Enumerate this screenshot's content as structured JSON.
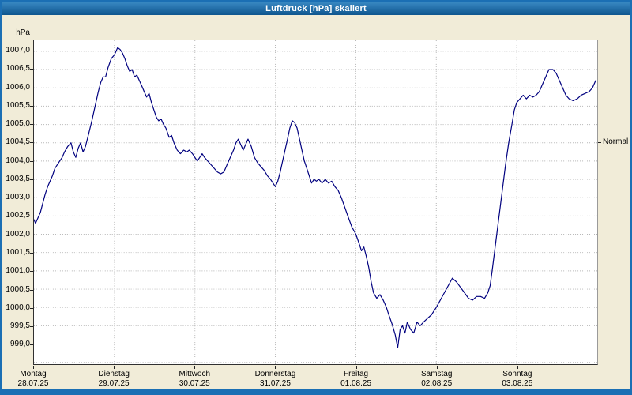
{
  "window": {
    "title": "Luftdruck [hPa] skaliert"
  },
  "colors": {
    "background": "#f1ecd8",
    "frame": "#1b6fb4",
    "titlebar_top": "#3a8ac4",
    "titlebar_bottom": "#0f568f",
    "line": "#00007f",
    "grid": "#b5b5b5",
    "plot_background": "#ffffff"
  },
  "chart_data": {
    "type": "line",
    "title": "Luftdruck [hPa] skaliert",
    "series_name": "Luftdruck",
    "ylabel": "hPa",
    "xlabel": "",
    "grid": true,
    "legend": "none",
    "xlim": [
      0,
      7
    ],
    "ylim": [
      998.45,
      1007.3
    ],
    "y_ticks": [
      {
        "value": 1007.0,
        "label": "1007,0"
      },
      {
        "value": 1006.5,
        "label": "1006,5"
      },
      {
        "value": 1006.0,
        "label": "1006,0"
      },
      {
        "value": 1005.5,
        "label": "1005,5"
      },
      {
        "value": 1005.0,
        "label": "1005,0"
      },
      {
        "value": 1004.5,
        "label": "1004,5"
      },
      {
        "value": 1004.0,
        "label": "1004,0"
      },
      {
        "value": 1003.5,
        "label": "1003,5"
      },
      {
        "value": 1003.0,
        "label": "1003,0"
      },
      {
        "value": 1002.5,
        "label": "1002,5"
      },
      {
        "value": 1002.0,
        "label": "1002,0"
      },
      {
        "value": 1001.5,
        "label": "1001,5"
      },
      {
        "value": 1001.0,
        "label": "1001,0"
      },
      {
        "value": 1000.5,
        "label": "1000,5"
      },
      {
        "value": 1000.0,
        "label": "1000,0"
      },
      {
        "value": 999.5,
        "label": "999,5"
      },
      {
        "value": 999.0,
        "label": "999,0"
      },
      {
        "value": 998.5,
        "label": ""
      }
    ],
    "x_labels": [
      {
        "day": "Montag",
        "date": "28.07.25"
      },
      {
        "day": "Dienstag",
        "date": "29.07.25"
      },
      {
        "day": "Mittwoch",
        "date": "30.07.25"
      },
      {
        "day": "Donnerstag",
        "date": "31.07.25"
      },
      {
        "day": "Freitag",
        "date": "01.08.25"
      },
      {
        "day": "Samstag",
        "date": "02.08.25"
      },
      {
        "day": "Sonntag",
        "date": "03.08.25"
      }
    ],
    "normal": {
      "label": "Normal",
      "value": 1004.5
    },
    "points": [
      [
        0.0,
        1002.4
      ],
      [
        0.02,
        1002.3
      ],
      [
        0.05,
        1002.45
      ],
      [
        0.08,
        1002.6
      ],
      [
        0.11,
        1002.85
      ],
      [
        0.14,
        1003.1
      ],
      [
        0.17,
        1003.3
      ],
      [
        0.2,
        1003.45
      ],
      [
        0.23,
        1003.6
      ],
      [
        0.26,
        1003.8
      ],
      [
        0.29,
        1003.9
      ],
      [
        0.32,
        1004.0
      ],
      [
        0.35,
        1004.1
      ],
      [
        0.38,
        1004.25
      ],
      [
        0.42,
        1004.4
      ],
      [
        0.46,
        1004.5
      ],
      [
        0.49,
        1004.25
      ],
      [
        0.52,
        1004.1
      ],
      [
        0.55,
        1004.35
      ],
      [
        0.58,
        1004.5
      ],
      [
        0.61,
        1004.25
      ],
      [
        0.64,
        1004.4
      ],
      [
        0.68,
        1004.75
      ],
      [
        0.72,
        1005.1
      ],
      [
        0.76,
        1005.5
      ],
      [
        0.8,
        1005.9
      ],
      [
        0.83,
        1006.15
      ],
      [
        0.86,
        1006.3
      ],
      [
        0.89,
        1006.3
      ],
      [
        0.92,
        1006.55
      ],
      [
        0.96,
        1006.8
      ],
      [
        1.0,
        1006.9
      ],
      [
        1.02,
        1007.0
      ],
      [
        1.04,
        1007.1
      ],
      [
        1.07,
        1007.05
      ],
      [
        1.1,
        1006.95
      ],
      [
        1.13,
        1006.8
      ],
      [
        1.16,
        1006.6
      ],
      [
        1.19,
        1006.45
      ],
      [
        1.22,
        1006.5
      ],
      [
        1.25,
        1006.3
      ],
      [
        1.28,
        1006.35
      ],
      [
        1.31,
        1006.2
      ],
      [
        1.34,
        1006.05
      ],
      [
        1.37,
        1005.9
      ],
      [
        1.4,
        1005.75
      ],
      [
        1.43,
        1005.85
      ],
      [
        1.46,
        1005.6
      ],
      [
        1.49,
        1005.4
      ],
      [
        1.52,
        1005.2
      ],
      [
        1.55,
        1005.1
      ],
      [
        1.58,
        1005.15
      ],
      [
        1.61,
        1005.0
      ],
      [
        1.64,
        1004.9
      ],
      [
        1.68,
        1004.65
      ],
      [
        1.71,
        1004.7
      ],
      [
        1.74,
        1004.5
      ],
      [
        1.78,
        1004.3
      ],
      [
        1.82,
        1004.2
      ],
      [
        1.86,
        1004.3
      ],
      [
        1.9,
        1004.25
      ],
      [
        1.93,
        1004.3
      ],
      [
        1.97,
        1004.2
      ],
      [
        2.0,
        1004.1
      ],
      [
        2.03,
        1004.0
      ],
      [
        2.06,
        1004.1
      ],
      [
        2.09,
        1004.2
      ],
      [
        2.12,
        1004.1
      ],
      [
        2.16,
        1004.0
      ],
      [
        2.2,
        1003.9
      ],
      [
        2.24,
        1003.8
      ],
      [
        2.28,
        1003.7
      ],
      [
        2.32,
        1003.65
      ],
      [
        2.36,
        1003.7
      ],
      [
        2.4,
        1003.9
      ],
      [
        2.44,
        1004.1
      ],
      [
        2.48,
        1004.3
      ],
      [
        2.51,
        1004.5
      ],
      [
        2.54,
        1004.6
      ],
      [
        2.57,
        1004.45
      ],
      [
        2.6,
        1004.3
      ],
      [
        2.63,
        1004.45
      ],
      [
        2.66,
        1004.6
      ],
      [
        2.7,
        1004.4
      ],
      [
        2.74,
        1004.1
      ],
      [
        2.78,
        1003.95
      ],
      [
        2.82,
        1003.85
      ],
      [
        2.86,
        1003.75
      ],
      [
        2.9,
        1003.6
      ],
      [
        2.94,
        1003.5
      ],
      [
        2.97,
        1003.4
      ],
      [
        3.0,
        1003.3
      ],
      [
        3.03,
        1003.45
      ],
      [
        3.06,
        1003.7
      ],
      [
        3.09,
        1004.0
      ],
      [
        3.12,
        1004.3
      ],
      [
        3.15,
        1004.6
      ],
      [
        3.18,
        1004.9
      ],
      [
        3.21,
        1005.1
      ],
      [
        3.24,
        1005.05
      ],
      [
        3.27,
        1004.9
      ],
      [
        3.3,
        1004.6
      ],
      [
        3.33,
        1004.3
      ],
      [
        3.36,
        1004.0
      ],
      [
        3.39,
        1003.8
      ],
      [
        3.42,
        1003.6
      ],
      [
        3.45,
        1003.4
      ],
      [
        3.48,
        1003.5
      ],
      [
        3.51,
        1003.45
      ],
      [
        3.54,
        1003.5
      ],
      [
        3.58,
        1003.4
      ],
      [
        3.62,
        1003.5
      ],
      [
        3.66,
        1003.4
      ],
      [
        3.7,
        1003.45
      ],
      [
        3.74,
        1003.3
      ],
      [
        3.78,
        1003.2
      ],
      [
        3.82,
        1003.0
      ],
      [
        3.86,
        1002.75
      ],
      [
        3.9,
        1002.5
      ],
      [
        3.95,
        1002.2
      ],
      [
        4.0,
        1002.0
      ],
      [
        4.04,
        1001.75
      ],
      [
        4.07,
        1001.55
      ],
      [
        4.1,
        1001.65
      ],
      [
        4.13,
        1001.4
      ],
      [
        4.16,
        1001.1
      ],
      [
        4.19,
        1000.7
      ],
      [
        4.22,
        1000.4
      ],
      [
        4.26,
        1000.25
      ],
      [
        4.3,
        1000.35
      ],
      [
        4.34,
        1000.2
      ],
      [
        4.38,
        1000.0
      ],
      [
        4.41,
        999.8
      ],
      [
        4.45,
        999.55
      ],
      [
        4.49,
        999.25
      ],
      [
        4.52,
        998.9
      ],
      [
        4.55,
        999.4
      ],
      [
        4.58,
        999.5
      ],
      [
        4.61,
        999.3
      ],
      [
        4.64,
        999.6
      ],
      [
        4.68,
        999.4
      ],
      [
        4.72,
        999.3
      ],
      [
        4.76,
        999.6
      ],
      [
        4.8,
        999.5
      ],
      [
        4.84,
        999.6
      ],
      [
        4.89,
        999.7
      ],
      [
        4.94,
        999.8
      ],
      [
        4.97,
        999.9
      ],
      [
        5.0,
        1000.0
      ],
      [
        5.05,
        1000.2
      ],
      [
        5.1,
        1000.4
      ],
      [
        5.15,
        1000.6
      ],
      [
        5.2,
        1000.8
      ],
      [
        5.25,
        1000.7
      ],
      [
        5.3,
        1000.55
      ],
      [
        5.35,
        1000.4
      ],
      [
        5.4,
        1000.25
      ],
      [
        5.45,
        1000.2
      ],
      [
        5.5,
        1000.3
      ],
      [
        5.55,
        1000.3
      ],
      [
        5.6,
        1000.25
      ],
      [
        5.64,
        1000.4
      ],
      [
        5.67,
        1000.6
      ],
      [
        5.7,
        1001.1
      ],
      [
        5.74,
        1001.8
      ],
      [
        5.78,
        1002.5
      ],
      [
        5.82,
        1003.2
      ],
      [
        5.86,
        1003.9
      ],
      [
        5.9,
        1004.5
      ],
      [
        5.94,
        1005.0
      ],
      [
        5.97,
        1005.4
      ],
      [
        6.0,
        1005.6
      ],
      [
        6.04,
        1005.7
      ],
      [
        6.08,
        1005.8
      ],
      [
        6.12,
        1005.7
      ],
      [
        6.16,
        1005.8
      ],
      [
        6.2,
        1005.75
      ],
      [
        6.24,
        1005.8
      ],
      [
        6.28,
        1005.9
      ],
      [
        6.32,
        1006.1
      ],
      [
        6.36,
        1006.3
      ],
      [
        6.4,
        1006.5
      ],
      [
        6.45,
        1006.5
      ],
      [
        6.49,
        1006.4
      ],
      [
        6.53,
        1006.2
      ],
      [
        6.57,
        1006.0
      ],
      [
        6.61,
        1005.8
      ],
      [
        6.65,
        1005.7
      ],
      [
        6.7,
        1005.65
      ],
      [
        6.75,
        1005.7
      ],
      [
        6.8,
        1005.8
      ],
      [
        6.85,
        1005.85
      ],
      [
        6.9,
        1005.9
      ],
      [
        6.94,
        1006.0
      ],
      [
        6.98,
        1006.2
      ]
    ]
  }
}
